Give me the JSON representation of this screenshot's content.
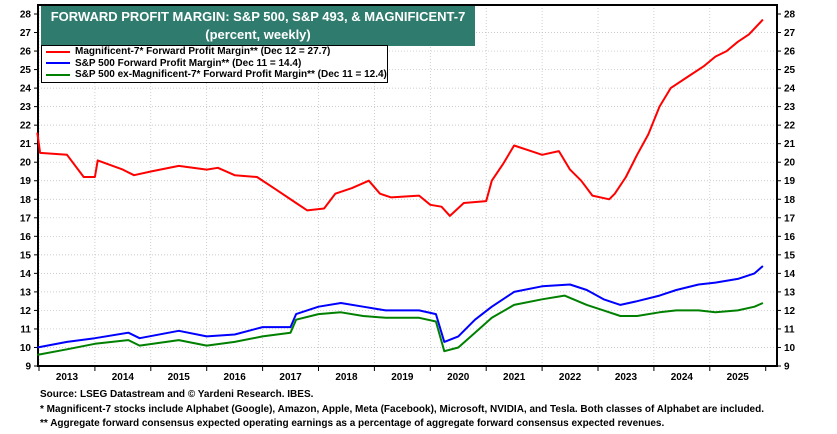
{
  "chart_data": {
    "type": "line",
    "title": "FORWARD PROFIT MARGIN: S&P 500, S&P 493, & MAGNIFICENT-7",
    "subtitle": "(percent, weekly)",
    "ylim": [
      9,
      28
    ],
    "yticks": [
      9,
      10,
      11,
      12,
      13,
      14,
      15,
      16,
      17,
      18,
      19,
      20,
      21,
      22,
      23,
      24,
      25,
      26,
      27,
      28
    ],
    "xlim": [
      2012.97,
      2025.98
    ],
    "xticks": [
      "2013",
      "2014",
      "2015",
      "2016",
      "2017",
      "2018",
      "2019",
      "2020",
      "2021",
      "2022",
      "2023",
      "2024",
      "2025"
    ],
    "grid": true,
    "legend_placement": "top-left",
    "series": [
      {
        "name": "Magnificent-7* Forward Profit Margin** (Dec 12 = 27.7)",
        "color": "#ff0000",
        "x": [
          2012.97,
          2013.02,
          2013.5,
          2013.8,
          2014.0,
          2014.05,
          2014.5,
          2014.7,
          2015.0,
          2015.5,
          2016.0,
          2016.2,
          2016.5,
          2016.9,
          2017.2,
          2017.6,
          2017.8,
          2018.1,
          2018.3,
          2018.6,
          2018.9,
          2019.1,
          2019.3,
          2019.8,
          2020.0,
          2020.2,
          2020.35,
          2020.6,
          2021.0,
          2021.1,
          2021.3,
          2021.5,
          2021.8,
          2022.0,
          2022.3,
          2022.5,
          2022.7,
          2022.9,
          2023.2,
          2023.3,
          2023.5,
          2023.7,
          2023.9,
          2024.1,
          2024.3,
          2024.6,
          2024.9,
          2025.1,
          2025.3,
          2025.5,
          2025.7,
          2025.95
        ],
        "values": [
          21.6,
          20.5,
          20.4,
          19.2,
          19.2,
          20.1,
          19.6,
          19.3,
          19.5,
          19.8,
          19.6,
          19.7,
          19.3,
          19.2,
          18.6,
          17.8,
          17.4,
          17.5,
          18.3,
          18.6,
          19.0,
          18.3,
          18.1,
          18.2,
          17.7,
          17.6,
          17.1,
          17.8,
          17.9,
          19.0,
          19.9,
          20.9,
          20.6,
          20.4,
          20.6,
          19.6,
          19.0,
          18.2,
          18.0,
          18.3,
          19.2,
          20.4,
          21.5,
          23.0,
          24.0,
          24.6,
          25.2,
          25.7,
          26.0,
          26.5,
          26.9,
          27.7
        ]
      },
      {
        "name": "S&P 500 Forward Profit Margin** (Dec 11 = 14.4)",
        "color": "#0000ff",
        "x": [
          2012.97,
          2013.5,
          2014.0,
          2014.6,
          2014.8,
          2015.5,
          2016.0,
          2016.5,
          2017.0,
          2017.5,
          2017.6,
          2018.0,
          2018.4,
          2018.8,
          2019.2,
          2019.8,
          2020.1,
          2020.25,
          2020.5,
          2020.8,
          2021.1,
          2021.5,
          2022.0,
          2022.5,
          2022.8,
          2023.1,
          2023.4,
          2023.7,
          2024.1,
          2024.4,
          2024.8,
          2025.1,
          2025.5,
          2025.8,
          2025.95
        ],
        "values": [
          10.0,
          10.3,
          10.5,
          10.8,
          10.5,
          10.9,
          10.6,
          10.7,
          11.1,
          11.1,
          11.8,
          12.2,
          12.4,
          12.2,
          12.0,
          12.0,
          11.8,
          10.3,
          10.6,
          11.5,
          12.2,
          13.0,
          13.3,
          13.4,
          13.1,
          12.6,
          12.3,
          12.5,
          12.8,
          13.1,
          13.4,
          13.5,
          13.7,
          14.0,
          14.4
        ]
      },
      {
        "name": "S&P 500 ex-Magnificent-7* Forward Profit Margin** (Dec 11 = 12.4)",
        "color": "#008000",
        "x": [
          2012.97,
          2013.5,
          2014.0,
          2014.6,
          2014.8,
          2015.5,
          2016.0,
          2016.5,
          2017.0,
          2017.5,
          2017.6,
          2018.0,
          2018.4,
          2018.8,
          2019.2,
          2019.8,
          2020.1,
          2020.25,
          2020.5,
          2020.8,
          2021.1,
          2021.5,
          2022.0,
          2022.4,
          2022.8,
          2023.1,
          2023.4,
          2023.7,
          2024.1,
          2024.4,
          2024.8,
          2025.1,
          2025.5,
          2025.8,
          2025.95
        ],
        "values": [
          9.6,
          9.9,
          10.2,
          10.4,
          10.1,
          10.4,
          10.1,
          10.3,
          10.6,
          10.8,
          11.5,
          11.8,
          11.9,
          11.7,
          11.6,
          11.6,
          11.4,
          9.8,
          10.0,
          10.8,
          11.6,
          12.3,
          12.6,
          12.8,
          12.3,
          12.0,
          11.7,
          11.7,
          11.9,
          12.0,
          12.0,
          11.9,
          12.0,
          12.2,
          12.4
        ]
      }
    ]
  },
  "notes": {
    "source": "Source: LSEG Datastream and © Yardeni Research. IBES.",
    "footnote1": "* Magnificent-7 stocks include Alphabet (Google), Amazon, Apple, Meta (Facebook), Microsoft, NVIDIA, and Tesla. Both classes of Alphabet are included.",
    "footnote2": "** Aggregate forward consensus expected operating earnings as a percentage of aggregate forward consensus expected revenues."
  }
}
